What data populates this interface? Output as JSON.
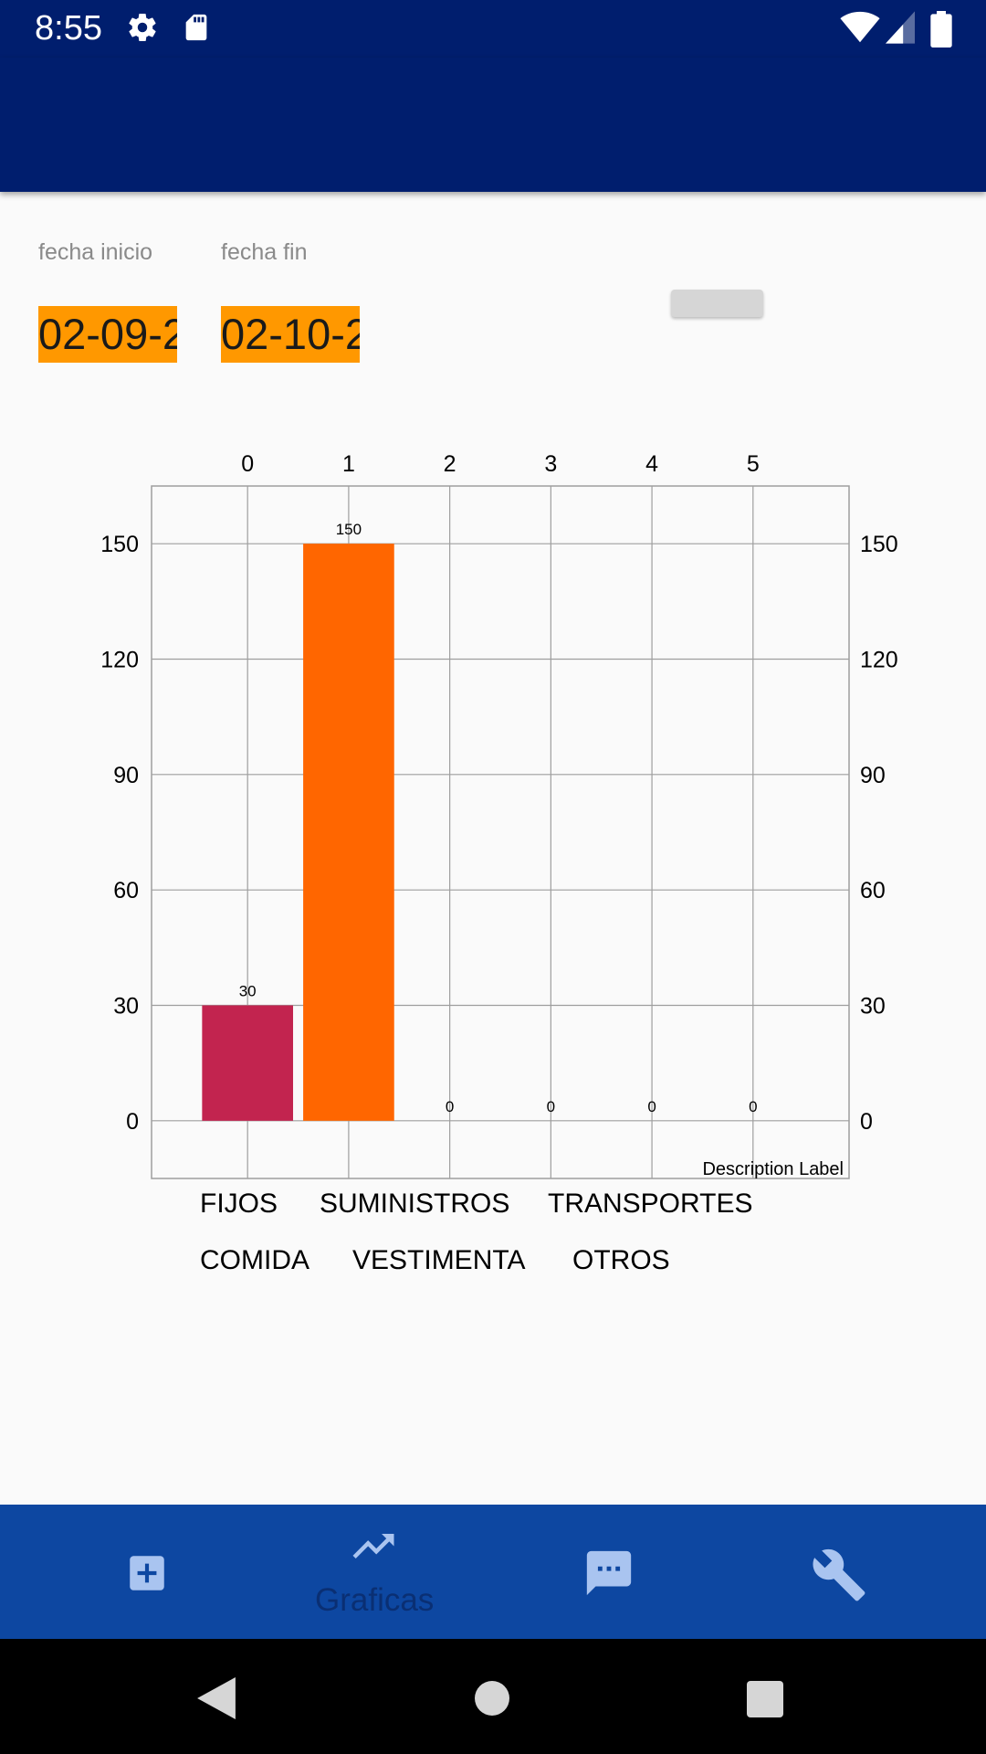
{
  "status_bar": {
    "time": "8:55"
  },
  "filters": {
    "start_label": "fecha inicio",
    "end_label": "fecha fin",
    "start_value": "02-09-2",
    "end_value": "02-10-2"
  },
  "chart_data": {
    "type": "bar",
    "categories": [
      "0",
      "1",
      "2",
      "3",
      "4",
      "5"
    ],
    "values": [
      30,
      150,
      0,
      0,
      0,
      0
    ],
    "colors": [
      "#c2244f",
      "#ff6600"
    ],
    "yticks": [
      0,
      30,
      60,
      90,
      120,
      150
    ],
    "ylim": [
      -15,
      165
    ],
    "xlim": [
      -0.95,
      5.95
    ],
    "description": "Description Label",
    "legend": [
      "FIJOS",
      "SUMINISTROS",
      "TRANSPORTES",
      "COMIDA",
      "VESTIMENTA",
      "OTROS"
    ],
    "grid": true
  },
  "bottom_nav": {
    "items": [
      {
        "icon": "add-box-icon"
      },
      {
        "icon": "trending-up-icon",
        "label": "Graficas"
      },
      {
        "icon": "chat-icon"
      },
      {
        "icon": "wrench-icon"
      }
    ]
  },
  "system_nav": {
    "icons": [
      "back-icon",
      "home-icon",
      "recents-icon"
    ]
  },
  "colors": {
    "primary": "#001e6e",
    "nav": "#0d47a1",
    "date_bg": "#ff9800"
  }
}
